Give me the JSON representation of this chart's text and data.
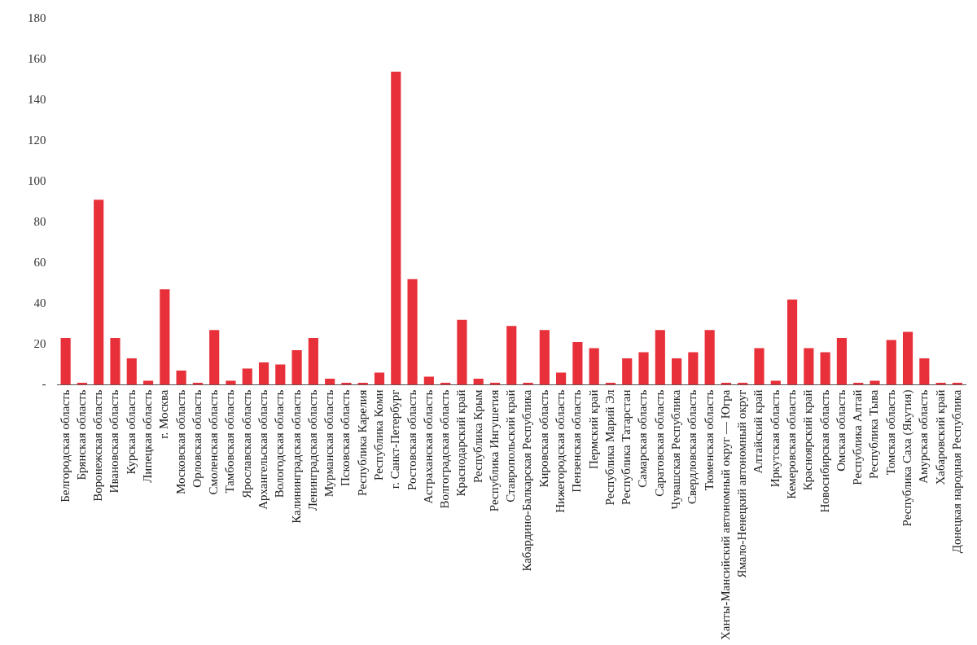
{
  "chart_data": {
    "type": "bar",
    "categories": [
      "Белгородская область",
      "Брянская область",
      "Воронежская область",
      "Ивановская область",
      "Курская область",
      "Липецкая область",
      "г. Москва",
      "Московская область",
      "Орловская область",
      "Смоленская область",
      "Тамбовская область",
      "Ярославская область",
      "Архангельская область",
      "Вологодская область",
      "Калининградская область",
      "Ленинградская область",
      "Мурманская область",
      "Псковская область",
      "Республика Карелия",
      "Республика Коми",
      "г. Санкт-Петербург",
      "Ростовская область",
      "Астраханская область",
      "Волгоградская область",
      "Краснодарский край",
      "Республика Крым",
      "Республика Ингушетия",
      "Ставропольский край",
      "Кабардино-Балкарская Республика",
      "Кировская область",
      "Нижегородская область",
      "Пензенская область",
      "Пермский край",
      "Республика Марий Эл",
      "Республика Татарстан",
      "Самарская область",
      "Саратовская область",
      "Чувашская Республика",
      "Свердловская область",
      "Тюменская область",
      "Ханты-Мансийский автономный округ — Югра",
      "Ямало-Ненецкий автономный округ",
      "Алтайский край",
      "Иркутская область",
      "Кемеровская область",
      "Красноярский край",
      "Новосибирская область",
      "Омская область",
      "Республика Алтай",
      "Республика Тыва",
      "Томская область",
      "Республика Саха (Якутия)",
      "Амурская область",
      "Хабаровский край",
      "Донецкая народная Республика"
    ],
    "values": [
      23,
      1,
      91,
      23,
      13,
      2,
      47,
      7,
      1,
      27,
      2,
      8,
      11,
      10,
      17,
      23,
      3,
      1,
      1,
      6,
      154,
      52,
      4,
      1,
      32,
      3,
      1,
      29,
      1,
      27,
      6,
      21,
      18,
      1,
      13,
      16,
      27,
      13,
      16,
      27,
      1,
      1,
      18,
      2,
      42,
      18,
      16,
      23,
      1,
      2,
      22,
      26,
      13,
      1,
      1
    ],
    "color": "#e8303a",
    "ylim": [
      0,
      180
    ],
    "yticks": [
      {
        "value": 0,
        "label": "-"
      },
      20,
      40,
      60,
      80,
      100,
      120,
      140,
      160,
      180
    ],
    "grid": false
  }
}
